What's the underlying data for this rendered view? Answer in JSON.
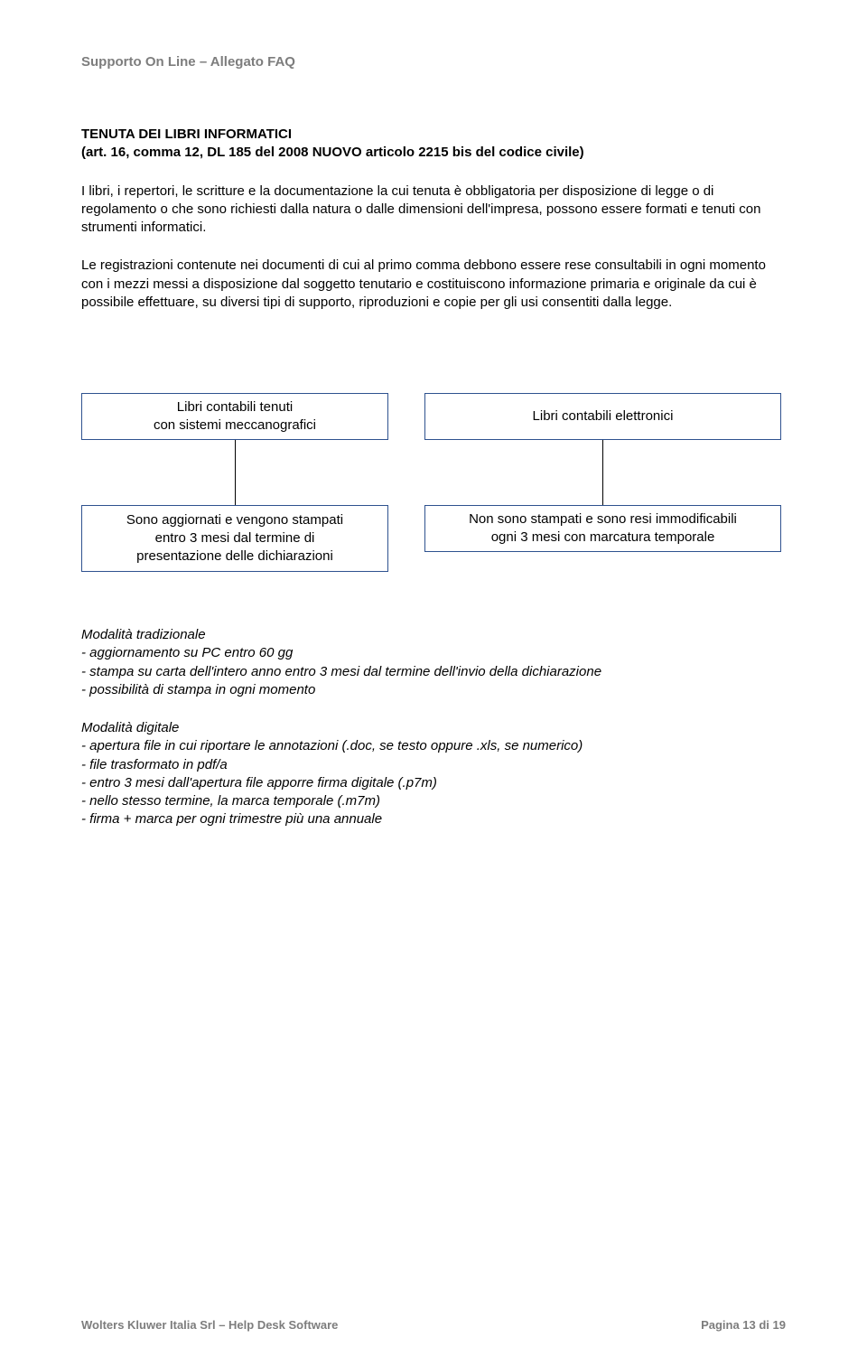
{
  "header": "Supporto On Line – Allegato FAQ",
  "title_line1": "TENUTA DEI LIBRI INFORMATICI",
  "title_line2": "(art. 16, comma 12, DL 185 del 2008 NUOVO articolo 2215 bis del codice civile)",
  "para1": "I libri, i repertori, le scritture e la documentazione la cui tenuta è obbligatoria per disposizione di legge o di regolamento o che sono richiesti dalla natura o dalle dimensioni dell'impresa, possono essere formati e tenuti con strumenti informatici.",
  "para2": "Le registrazioni contenute nei documenti di cui al primo comma debbono essere rese consultabili in ogni momento con i mezzi messi a disposizione dal soggetto tenutario e costituiscono informazione primaria e originale da cui è possibile effettuare, su diversi tipi di supporto, riproduzioni e copie per gli usi consentiti dalla legge.",
  "diagram": {
    "top_left_l1": "Libri contabili tenuti",
    "top_left_l2": "con sistemi meccanografici",
    "top_right": "Libri contabili elettronici",
    "bot_left_l1": "Sono aggiornati e vengono stampati",
    "bot_left_l2": "entro 3 mesi dal termine di",
    "bot_left_l3": "presentazione delle dichiarazioni",
    "bot_right_l1": "Non sono stampati e sono resi immodificabili",
    "bot_right_l2": "ogni 3 mesi con marcatura temporale"
  },
  "trad_heading": "Modalità tradizionale",
  "trad_items": [
    "- aggiornamento su PC entro 60 gg",
    "- stampa su carta dell'intero anno entro 3 mesi dal termine dell'invio della dichiarazione",
    "- possibilità di stampa in ogni momento"
  ],
  "dig_heading": "Modalità digitale",
  "dig_items": [
    "- apertura file in cui riportare le annotazioni (.doc, se testo oppure .xls, se numerico)",
    "- file trasformato in pdf/a",
    "- entro 3 mesi dall'apertura file apporre firma digitale (.p7m)",
    "- nello stesso termine, la marca temporale (.m7m)",
    "- firma + marca per ogni trimestre più una annuale"
  ],
  "footer_left": "Wolters Kluwer Italia Srl – Help Desk Software",
  "footer_right": "Pagina 13 di 19"
}
